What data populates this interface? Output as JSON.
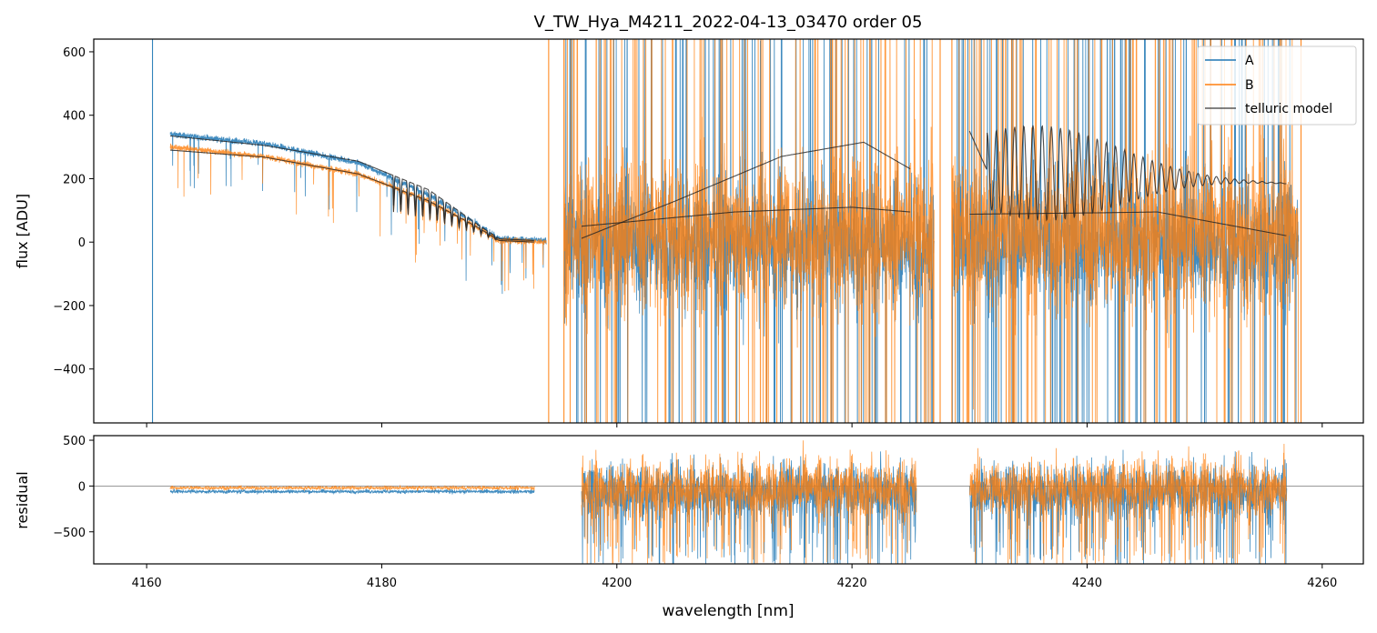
{
  "title": "V_TW_Hya_M4211_2022-04-13_03470  order 05",
  "colors": {
    "A": "#1f77b4",
    "B": "#ff7f0e",
    "model": "#222222",
    "residual_zero": "#777777"
  },
  "legend": {
    "placement": "top-right",
    "entries": [
      "A",
      "B",
      "telluric model"
    ]
  },
  "chart_data": [
    {
      "type": "line",
      "panel": "top",
      "ylabel": "flux [ADU]",
      "xlim": [
        4155.5,
        4263.5
      ],
      "ylim": [
        -570,
        640
      ],
      "yticks": [
        -400,
        -200,
        0,
        200,
        400,
        600
      ],
      "ytick_labels": [
        "−400",
        "−200",
        "0",
        "200",
        "400",
        "600"
      ],
      "segments": [
        {
          "x0": 4162,
          "x1": 4194,
          "kind": "smooth_absorption"
        },
        {
          "x0": 4195.5,
          "x1": 4227,
          "kind": "noisy"
        },
        {
          "x0": 4228.5,
          "x1": 4258,
          "kind": "noisy"
        }
      ],
      "series": [
        {
          "name": "A",
          "color": "#1f77b4",
          "continuum": [
            [
              4162,
              340
            ],
            [
              4170,
              310
            ],
            [
              4178,
              250
            ],
            [
              4184,
              150
            ],
            [
              4188,
              60
            ],
            [
              4190,
              10
            ],
            [
              4194,
              5
            ]
          ],
          "noisy_level": 0,
          "noisy_amplitude": 360
        },
        {
          "name": "B",
          "color": "#ff7f0e",
          "continuum": [
            [
              4162,
              300
            ],
            [
              4170,
              270
            ],
            [
              4178,
              215
            ],
            [
              4184,
              130
            ],
            [
              4188,
              50
            ],
            [
              4190,
              5
            ],
            [
              4194,
              0
            ]
          ],
          "noisy_level": 30,
          "noisy_amplitude": 420
        },
        {
          "name": "telluric model",
          "color": "#222222",
          "curves": [
            [
              [
                4162,
                335
              ],
              [
                4170,
                305
              ],
              [
                4178,
                255
              ],
              [
                4184,
                165
              ],
              [
                4188,
                60
              ],
              [
                4190,
                10
              ],
              [
                4193,
                5
              ]
            ],
            [
              [
                4162,
                290
              ],
              [
                4170,
                268
              ],
              [
                4178,
                215
              ],
              [
                4184,
                130
              ],
              [
                4188,
                50
              ],
              [
                4190,
                5
              ],
              [
                4193,
                0
              ]
            ],
            [
              [
                4197,
                12
              ],
              [
                4205,
                130
              ],
              [
                4214,
                270
              ],
              [
                4221,
                315
              ],
              [
                4225,
                230
              ]
            ],
            [
              [
                4197,
                50
              ],
              [
                4210,
                95
              ],
              [
                4220,
                110
              ],
              [
                4225,
                95
              ]
            ],
            [
              [
                4230,
                88
              ],
              [
                4240,
                92
              ],
              [
                4246,
                95
              ],
              [
                4257,
                20
              ]
            ],
            [
              [
                4230,
                350
              ],
              [
                4231.5,
                225
              ],
              [
                4257,
                185
              ]
            ]
          ]
        }
      ]
    },
    {
      "type": "line",
      "panel": "bottom",
      "xlabel": "wavelength [nm]",
      "ylabel": "residual",
      "xlim": [
        4155.5,
        4263.5
      ],
      "ylim": [
        -850,
        550
      ],
      "xticks": [
        4160,
        4180,
        4200,
        4220,
        4240,
        4260
      ],
      "xtick_labels": [
        "4160",
        "4180",
        "4200",
        "4220",
        "4240",
        "4260"
      ],
      "yticks": [
        -500,
        0,
        500
      ],
      "ytick_labels": [
        "−500",
        "0",
        "500"
      ],
      "segments": [
        {
          "x0": 4162,
          "x1": 4193,
          "amplitude": 35
        },
        {
          "x0": 4197,
          "x1": 4225.5,
          "amplitude": 550
        },
        {
          "x0": 4230,
          "x1": 4257,
          "amplitude": 550
        }
      ]
    }
  ]
}
